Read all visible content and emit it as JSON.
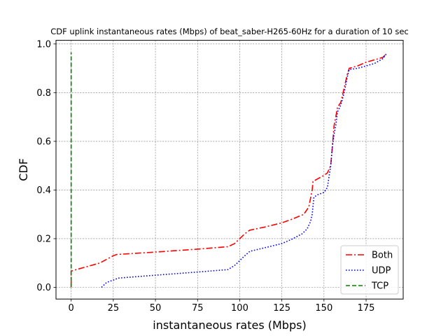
{
  "chart_data": {
    "type": "line",
    "title": "CDF uplink instantaneous rates (Mbps) of beat_saber-H265-60Hz for a duration of 10 sec",
    "xlabel": "instantaneous rates (Mbps)",
    "ylabel": "CDF",
    "xlim": [
      -9,
      197
    ],
    "ylim": [
      -0.048,
      1.015
    ],
    "xticks": [
      0,
      25,
      50,
      75,
      100,
      125,
      150,
      175
    ],
    "yticks": [
      0.0,
      0.2,
      0.4,
      0.6,
      0.8,
      1.0
    ],
    "xtick_labels": [
      "0",
      "25",
      "50",
      "75",
      "100",
      "125",
      "150",
      "175"
    ],
    "ytick_labels": [
      "0.0",
      "0.2",
      "0.4",
      "0.6",
      "0.8",
      "1.0"
    ],
    "grid": true,
    "legend_position": "lower-right",
    "series": [
      {
        "name": "Both",
        "color": "#ff0000",
        "dash": "dashdot",
        "x": [
          0,
          0,
          0,
          17,
          25,
          27,
          50,
          75,
          93,
          97,
          100,
          103,
          106,
          115,
          125,
          131,
          138,
          141,
          143,
          143.5,
          146,
          150,
          152,
          154,
          155,
          156,
          157,
          158,
          160,
          162,
          164,
          165,
          170,
          175,
          180,
          185,
          187
        ],
        "y": [
          0.0,
          0.03,
          0.067,
          0.1,
          0.13,
          0.135,
          0.145,
          0.157,
          0.167,
          0.18,
          0.2,
          0.22,
          0.235,
          0.248,
          0.265,
          0.28,
          0.3,
          0.33,
          0.4,
          0.435,
          0.445,
          0.46,
          0.47,
          0.5,
          0.58,
          0.665,
          0.7,
          0.74,
          0.76,
          0.82,
          0.88,
          0.9,
          0.91,
          0.925,
          0.935,
          0.945,
          0.96
        ]
      },
      {
        "name": "UDP",
        "color": "#0000ff",
        "dash": "dotted",
        "x": [
          18,
          21,
          25,
          28,
          50,
          75,
          93,
          97,
          100,
          103,
          106,
          115,
          125,
          131,
          137,
          140,
          142,
          143,
          144,
          146,
          150,
          152,
          154,
          155,
          156,
          157,
          158,
          160,
          162,
          164,
          165,
          170,
          175,
          180,
          185,
          187
        ],
        "y": [
          0.0,
          0.02,
          0.03,
          0.038,
          0.05,
          0.063,
          0.073,
          0.09,
          0.11,
          0.13,
          0.148,
          0.163,
          0.18,
          0.198,
          0.22,
          0.24,
          0.27,
          0.3,
          0.37,
          0.38,
          0.39,
          0.41,
          0.5,
          0.58,
          0.63,
          0.665,
          0.72,
          0.75,
          0.8,
          0.87,
          0.895,
          0.9,
          0.91,
          0.92,
          0.94,
          0.96
        ]
      },
      {
        "name": "TCP",
        "color": "#008000",
        "dash": "dashed",
        "x": [
          0,
          0
        ],
        "y": [
          0.0,
          0.965
        ]
      }
    ]
  }
}
